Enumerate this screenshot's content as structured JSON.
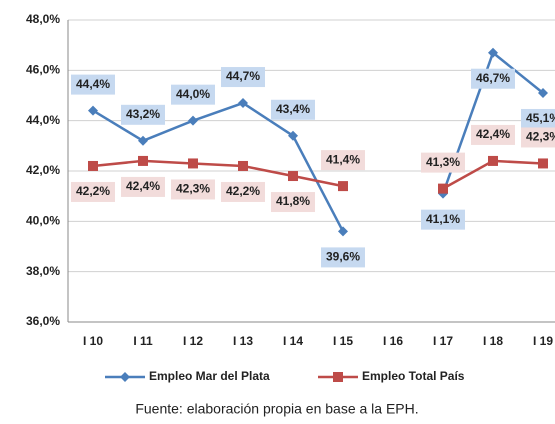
{
  "chart_data": {
    "type": "line",
    "categories": [
      "I 10",
      "I 11",
      "I 12",
      "I 13",
      "I 14",
      "I 15",
      "I 16",
      "I 17",
      "I 18",
      "I 19"
    ],
    "series": [
      {
        "name": "Empleo Mar del Plata",
        "color": "#4a7ebb",
        "values": [
          44.4,
          43.2,
          44.0,
          44.7,
          43.4,
          39.6,
          null,
          41.1,
          46.7,
          45.1
        ],
        "value_labels": [
          "44,4%",
          "43,2%",
          "44,0%",
          "44,7%",
          "43,4%",
          "39,6%",
          null,
          "41,1%",
          "46,7%",
          "45,1%"
        ]
      },
      {
        "name": "Empleo Total País",
        "color": "#be4b48",
        "values": [
          42.2,
          42.4,
          42.3,
          42.2,
          41.8,
          41.4,
          null,
          41.3,
          42.4,
          42.3
        ],
        "value_labels": [
          "42,2%",
          "42,4%",
          "42,3%",
          "42,2%",
          "41,8%",
          "41,4%",
          null,
          "41,3%",
          "42,4%",
          "42,3%"
        ]
      }
    ],
    "ylim": [
      36,
      48
    ],
    "yticks": [
      {
        "value": 36,
        "label": "36,0%"
      },
      {
        "value": 38,
        "label": "38,0%"
      },
      {
        "value": 40,
        "label": "40,0%"
      },
      {
        "value": 42,
        "label": "42,0%"
      },
      {
        "value": 44,
        "label": "44,0%"
      },
      {
        "value": 46,
        "label": "46,0%"
      },
      {
        "value": 48,
        "label": "48,0%"
      }
    ],
    "grid": true,
    "legend": "bottom",
    "source": "Fuente: elaboración propia en base a la EPH."
  }
}
